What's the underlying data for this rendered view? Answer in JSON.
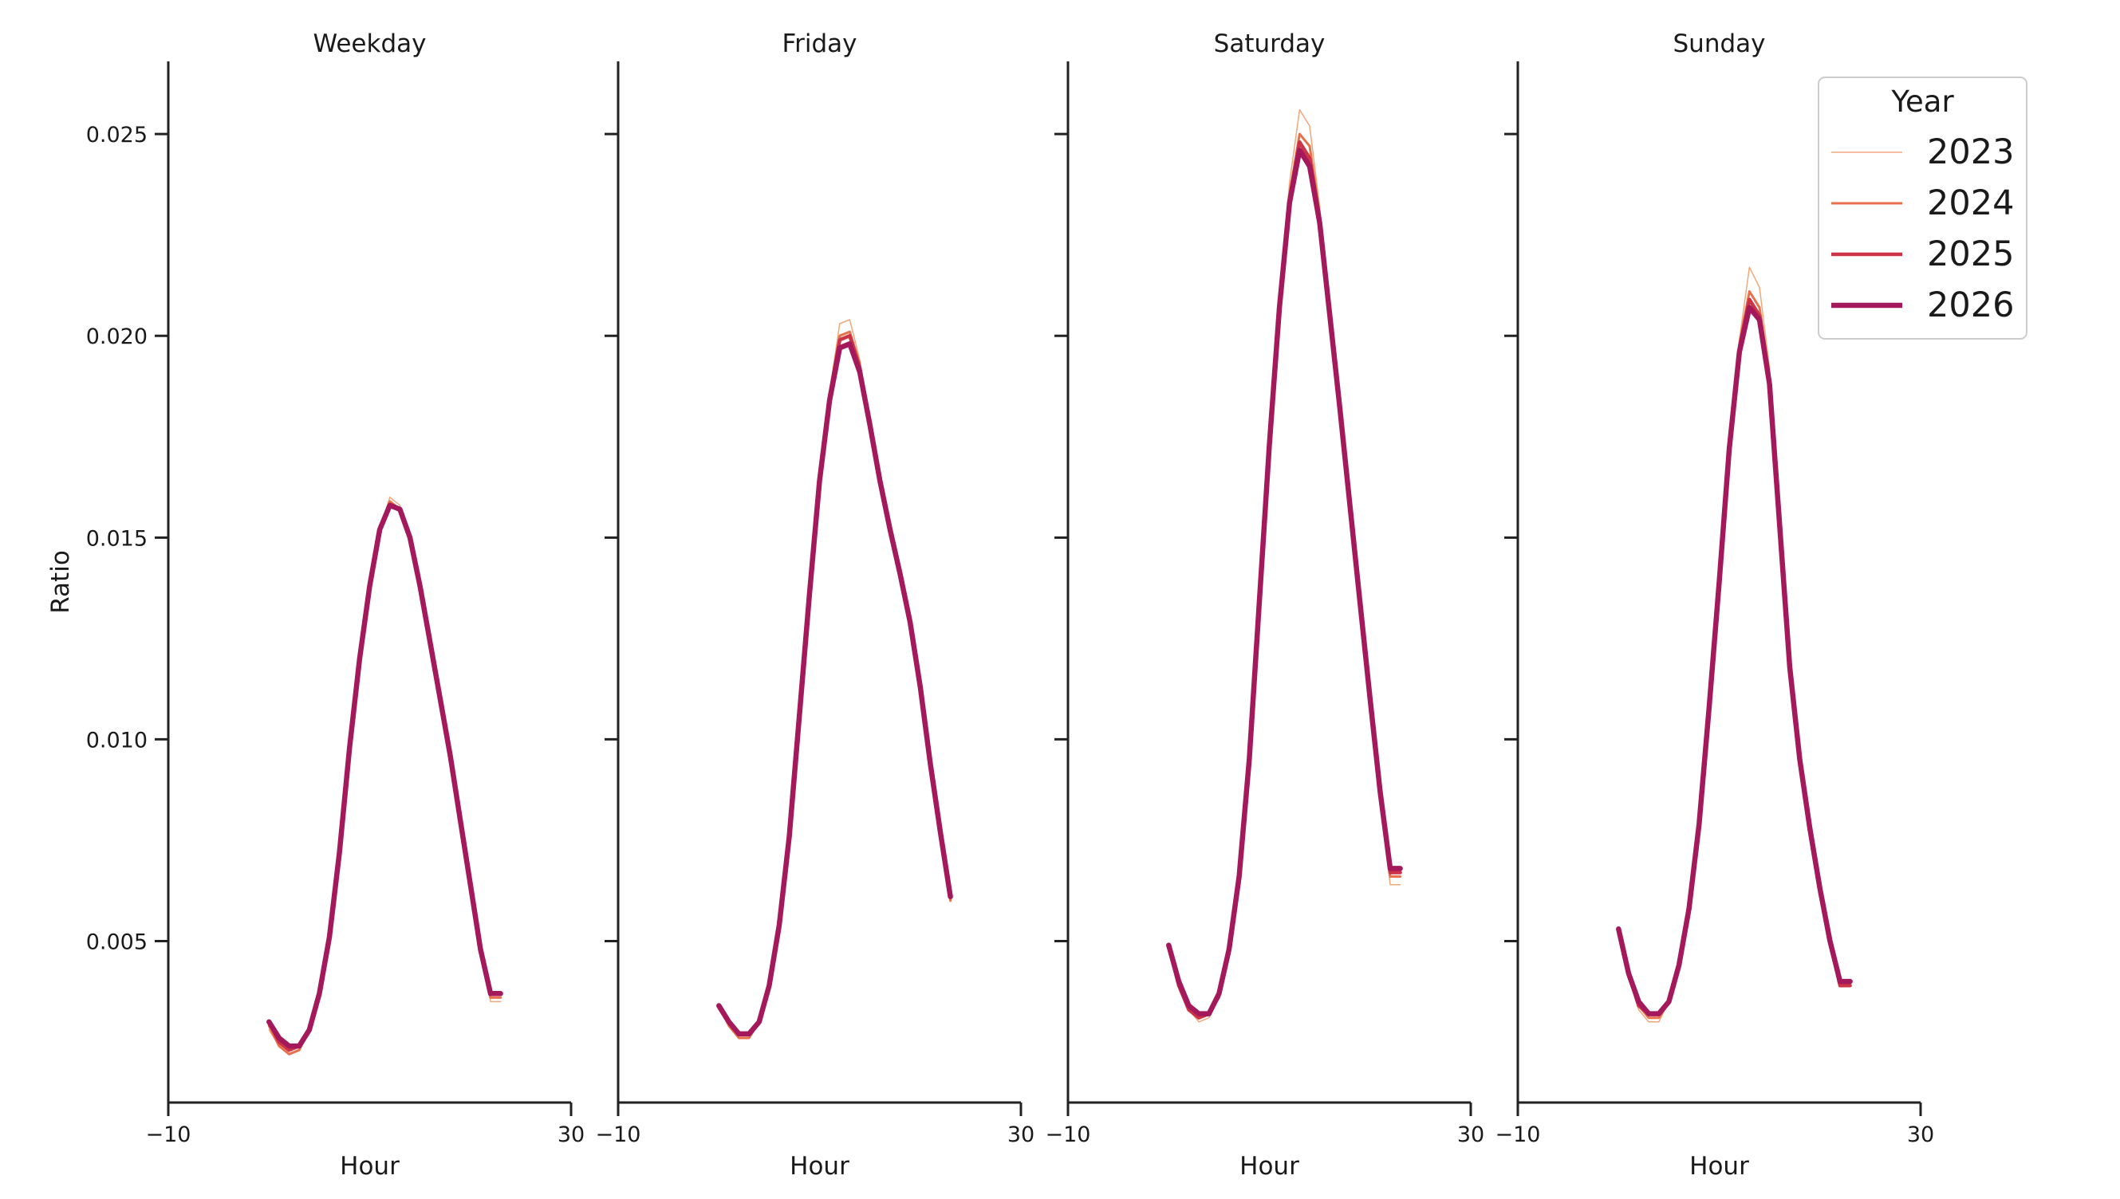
{
  "chart_data": {
    "type": "line",
    "ylabel": "Ratio",
    "ylim": [
      0.001,
      0.0268
    ],
    "yticks": [
      0.005,
      0.01,
      0.015,
      0.02,
      0.025
    ],
    "ytick_labels": [
      "0.005",
      "0.010",
      "0.015",
      "0.020",
      "0.025"
    ],
    "xlim": [
      -10,
      30
    ],
    "xticks": [
      -10,
      30
    ],
    "xtick_labels": [
      "−10",
      "30"
    ],
    "grid": false,
    "legend": {
      "title": "Year",
      "placement": "top-right",
      "entries": [
        "2023",
        "2024",
        "2025",
        "2026"
      ]
    },
    "colors": {
      "2023": "#f0a77a",
      "2024": "#e8704a",
      "2025": "#cc3347",
      "2026": "#a3195b"
    },
    "line_widths": {
      "2023": 1.5,
      "2024": 3,
      "2025": 4.5,
      "2026": 6.5
    },
    "panels": [
      {
        "title": "Weekday",
        "xlabel": "Hour",
        "x": [
          0,
          1,
          2,
          3,
          4,
          5,
          6,
          7,
          8,
          9,
          10,
          11,
          12,
          13,
          14,
          15,
          16,
          17,
          18,
          19,
          20,
          21,
          22,
          23
        ],
        "series": [
          {
            "name": "2023",
            "values": [
              0.0028,
              0.0024,
              0.0022,
              0.0023,
              0.0028,
              0.0037,
              0.005,
              0.0072,
              0.0098,
              0.012,
              0.0138,
              0.0152,
              0.016,
              0.0158,
              0.015,
              0.0138,
              0.0124,
              0.011,
              0.0096,
              0.008,
              0.0063,
              0.0047,
              0.0035,
              0.0035
            ]
          },
          {
            "name": "2024",
            "values": [
              0.0029,
              0.0024,
              0.0022,
              0.0023,
              0.0028,
              0.0037,
              0.0051,
              0.0072,
              0.0098,
              0.012,
              0.0138,
              0.0152,
              0.0159,
              0.0157,
              0.015,
              0.0138,
              0.0124,
              0.011,
              0.0096,
              0.008,
              0.0063,
              0.0048,
              0.0036,
              0.0036
            ]
          },
          {
            "name": "2025",
            "values": [
              0.003,
              0.0025,
              0.0023,
              0.0024,
              0.0028,
              0.0037,
              0.0051,
              0.0072,
              0.0098,
              0.012,
              0.0138,
              0.0152,
              0.0158,
              0.0157,
              0.015,
              0.0138,
              0.0124,
              0.011,
              0.0096,
              0.008,
              0.0064,
              0.0048,
              0.0037,
              0.0037
            ]
          },
          {
            "name": "2026",
            "values": [
              0.003,
              0.0026,
              0.0024,
              0.0024,
              0.0028,
              0.0037,
              0.0051,
              0.0072,
              0.0098,
              0.012,
              0.0138,
              0.0152,
              0.0158,
              0.0157,
              0.015,
              0.0138,
              0.0124,
              0.011,
              0.0096,
              0.008,
              0.0064,
              0.0048,
              0.0037,
              0.0037
            ]
          }
        ]
      },
      {
        "title": "Friday",
        "xlabel": "Hour",
        "x": [
          0,
          1,
          2,
          3,
          4,
          5,
          6,
          7,
          8,
          9,
          10,
          11,
          12,
          13,
          14,
          15,
          16,
          17,
          18,
          19,
          20,
          21,
          22,
          23
        ],
        "series": [
          {
            "name": "2023",
            "values": [
              0.0033,
              0.0029,
              0.0026,
              0.0026,
              0.003,
              0.0039,
              0.0054,
              0.0076,
              0.0106,
              0.0138,
              0.0166,
              0.0186,
              0.0203,
              0.0204,
              0.0194,
              0.0178,
              0.0164,
              0.0152,
              0.014,
              0.0128,
              0.0112,
              0.0094,
              0.0076,
              0.006
            ]
          },
          {
            "name": "2024",
            "values": [
              0.0034,
              0.0029,
              0.0026,
              0.0026,
              0.003,
              0.0039,
              0.0054,
              0.0076,
              0.0106,
              0.0137,
              0.0165,
              0.0185,
              0.02,
              0.0201,
              0.0193,
              0.0178,
              0.0164,
              0.0152,
              0.0141,
              0.0129,
              0.0113,
              0.0094,
              0.0076,
              0.006
            ]
          },
          {
            "name": "2025",
            "values": [
              0.0034,
              0.003,
              0.0027,
              0.0027,
              0.003,
              0.0039,
              0.0054,
              0.0076,
              0.0106,
              0.0137,
              0.0165,
              0.0185,
              0.0199,
              0.02,
              0.0192,
              0.0178,
              0.0164,
              0.0152,
              0.0141,
              0.0129,
              0.0113,
              0.0094,
              0.0077,
              0.0061
            ]
          },
          {
            "name": "2026",
            "values": [
              0.0034,
              0.003,
              0.0027,
              0.0027,
              0.003,
              0.0039,
              0.0054,
              0.0076,
              0.0106,
              0.0136,
              0.0164,
              0.0184,
              0.0197,
              0.0198,
              0.0191,
              0.0178,
              0.0164,
              0.0152,
              0.0141,
              0.0129,
              0.0113,
              0.0094,
              0.0077,
              0.0061
            ]
          }
        ]
      },
      {
        "title": "Saturday",
        "xlabel": "Hour",
        "x": [
          0,
          1,
          2,
          3,
          4,
          5,
          6,
          7,
          8,
          9,
          10,
          11,
          12,
          13,
          14,
          15,
          16,
          17,
          18,
          19,
          20,
          21,
          22,
          23
        ],
        "series": [
          {
            "name": "2023",
            "values": [
              0.0049,
              0.0039,
              0.0033,
              0.003,
              0.0031,
              0.0036,
              0.0047,
              0.0066,
              0.0095,
              0.0135,
              0.0176,
              0.021,
              0.0238,
              0.0256,
              0.0252,
              0.0232,
              0.0206,
              0.0182,
              0.0158,
              0.0134,
              0.011,
              0.0085,
              0.0064,
              0.0064
            ]
          },
          {
            "name": "2024",
            "values": [
              0.0049,
              0.0039,
              0.0033,
              0.0031,
              0.0032,
              0.0036,
              0.0047,
              0.0066,
              0.0095,
              0.0134,
              0.0174,
              0.0208,
              0.0235,
              0.025,
              0.0247,
              0.023,
              0.0206,
              0.0182,
              0.0158,
              0.0134,
              0.011,
              0.0086,
              0.0066,
              0.0066
            ]
          },
          {
            "name": "2025",
            "values": [
              0.0049,
              0.0039,
              0.0033,
              0.0031,
              0.0032,
              0.0037,
              0.0048,
              0.0066,
              0.0095,
              0.0134,
              0.0173,
              0.0207,
              0.0234,
              0.0248,
              0.0244,
              0.0229,
              0.0205,
              0.0182,
              0.0158,
              0.0134,
              0.011,
              0.0087,
              0.0067,
              0.0067
            ]
          },
          {
            "name": "2026",
            "values": [
              0.0049,
              0.004,
              0.0034,
              0.0032,
              0.0032,
              0.0037,
              0.0048,
              0.0066,
              0.0095,
              0.0134,
              0.0173,
              0.0207,
              0.0233,
              0.0246,
              0.0242,
              0.0228,
              0.0205,
              0.0182,
              0.0158,
              0.0134,
              0.011,
              0.0087,
              0.0068,
              0.0068
            ]
          }
        ]
      },
      {
        "title": "Sunday",
        "xlabel": "Hour",
        "x": [
          0,
          1,
          2,
          3,
          4,
          5,
          6,
          7,
          8,
          9,
          10,
          11,
          12,
          13,
          14,
          15,
          16,
          17,
          18,
          19,
          20,
          21,
          22,
          23
        ],
        "series": [
          {
            "name": "2023",
            "values": [
              0.0053,
              0.0041,
              0.0033,
              0.003,
              0.003,
              0.0035,
              0.0044,
              0.0058,
              0.0079,
              0.0108,
              0.0141,
              0.0174,
              0.0199,
              0.0217,
              0.0212,
              0.0192,
              0.0155,
              0.0118,
              0.0095,
              0.0078,
              0.0063,
              0.005,
              0.0039,
              0.0039
            ]
          },
          {
            "name": "2024",
            "values": [
              0.0053,
              0.0041,
              0.0034,
              0.0031,
              0.0031,
              0.0035,
              0.0044,
              0.0058,
              0.0079,
              0.0108,
              0.014,
              0.0173,
              0.0198,
              0.0211,
              0.0207,
              0.019,
              0.0154,
              0.0118,
              0.0095,
              0.0078,
              0.0063,
              0.005,
              0.0039,
              0.0039
            ]
          },
          {
            "name": "2025",
            "values": [
              0.0053,
              0.0042,
              0.0034,
              0.0032,
              0.0032,
              0.0035,
              0.0044,
              0.0058,
              0.0079,
              0.0108,
              0.014,
              0.0173,
              0.0197,
              0.0209,
              0.0205,
              0.0189,
              0.0154,
              0.0118,
              0.0095,
              0.0078,
              0.0063,
              0.005,
              0.0039,
              0.0039
            ]
          },
          {
            "name": "2026",
            "values": [
              0.0053,
              0.0042,
              0.0035,
              0.0032,
              0.0032,
              0.0035,
              0.0044,
              0.0058,
              0.0079,
              0.0108,
              0.0139,
              0.0172,
              0.0196,
              0.0207,
              0.0204,
              0.0188,
              0.0153,
              0.0118,
              0.0095,
              0.0078,
              0.0063,
              0.005,
              0.004,
              0.004
            ]
          }
        ]
      }
    ]
  }
}
